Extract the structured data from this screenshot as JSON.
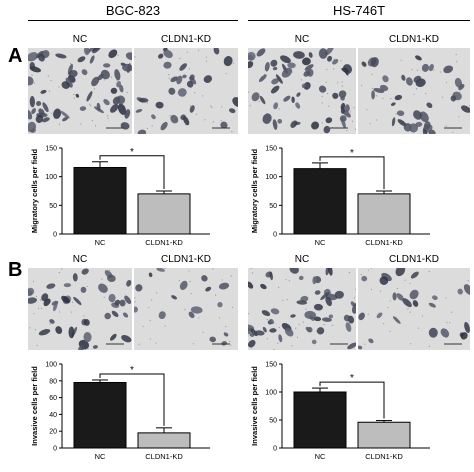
{
  "panels": {
    "a": {
      "letter": "A"
    },
    "b": {
      "letter": "B"
    }
  },
  "cell_lines": {
    "left": {
      "name": "BGC-823"
    },
    "right": {
      "name": "HS-746T"
    }
  },
  "group_labels": {
    "nc": "NC",
    "kd": "CLDN1-KD"
  },
  "colors": {
    "nc_bar": "#1a1a1a",
    "kd_bar": "#bdbdbd",
    "cell_stain": "#3a3f52",
    "background": "#dcdcdc"
  },
  "chart_data": [
    {
      "type": "bar",
      "panel": "A",
      "cell_line": "BGC-823",
      "ylabel": "Migratory cells per field",
      "categories": [
        "NC",
        "CLDN1-KD"
      ],
      "values": [
        116,
        70
      ],
      "errors": [
        10,
        5
      ],
      "ylim": [
        0,
        150
      ],
      "yticks": [
        0,
        50,
        100,
        150
      ],
      "significance": "*"
    },
    {
      "type": "bar",
      "panel": "A",
      "cell_line": "HS-746T",
      "ylabel": "Migratory cells per field",
      "categories": [
        "NC",
        "CLDN1-KD"
      ],
      "values": [
        114,
        70
      ],
      "errors": [
        10,
        5
      ],
      "ylim": [
        0,
        150
      ],
      "yticks": [
        0,
        50,
        100,
        150
      ],
      "significance": "*"
    },
    {
      "type": "bar",
      "panel": "B",
      "cell_line": "BGC-823",
      "ylabel": "Invasive cells per field",
      "categories": [
        "NC",
        "CLDN1-KD"
      ],
      "values": [
        78,
        18
      ],
      "errors": [
        3,
        6
      ],
      "ylim": [
        0,
        100
      ],
      "yticks": [
        0,
        20,
        40,
        60,
        80,
        100
      ],
      "significance": "*"
    },
    {
      "type": "bar",
      "panel": "B",
      "cell_line": "HS-746T",
      "ylabel": "Invasive cells per field",
      "categories": [
        "NC",
        "CLDN1-KD"
      ],
      "values": [
        100,
        46
      ],
      "errors": [
        7,
        3
      ],
      "ylim": [
        0,
        150
      ],
      "yticks": [
        0,
        50,
        100,
        150
      ],
      "significance": "*"
    }
  ]
}
